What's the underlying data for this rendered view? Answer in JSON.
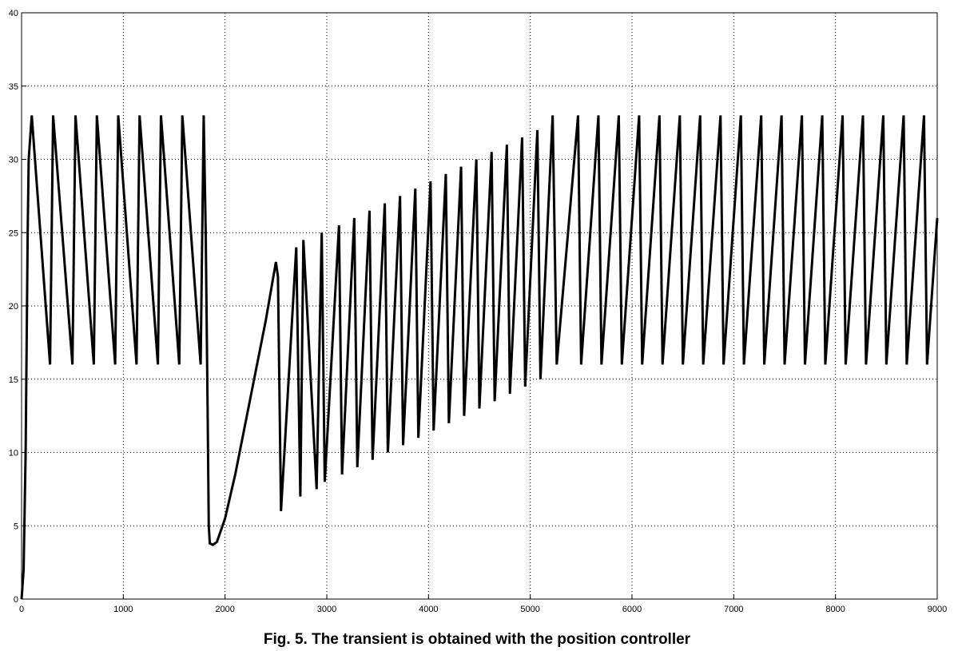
{
  "caption": "Fig. 5. The transient is obtained with the position controller",
  "chart_data": {
    "type": "line",
    "title": "",
    "xlabel": "",
    "ylabel": "",
    "xlim": [
      0,
      9000
    ],
    "ylim": [
      0,
      40
    ],
    "xticks": [
      0,
      1000,
      2000,
      3000,
      4000,
      5000,
      6000,
      7000,
      8000,
      9000
    ],
    "yticks": [
      0,
      5,
      10,
      15,
      20,
      25,
      30,
      35,
      40
    ],
    "grid": true,
    "legend": "none",
    "line_color": "#000000",
    "series": [
      {
        "x": [
          0,
          20,
          40,
          60,
          70,
          100,
          280,
          310,
          500,
          530,
          710,
          740,
          920,
          950,
          1130,
          1160,
          1340,
          1370,
          1550,
          1580,
          1760,
          1790,
          1810,
          1830,
          1840,
          1850,
          1880,
          1920,
          2000,
          2100,
          2200,
          2300,
          2400,
          2500,
          2520,
          2550,
          2700,
          2740,
          2770,
          2900,
          2950,
          2980,
          3120,
          3150,
          3270,
          3300,
          3420,
          3450,
          3570,
          3600,
          3720,
          3750,
          3870,
          3900,
          4020,
          4050,
          4170,
          4200,
          4320,
          4350,
          4470,
          4500,
          4620,
          4650,
          4770,
          4800,
          4920,
          4950,
          5070,
          5100,
          5220,
          5260,
          5470,
          5500,
          5670,
          5700,
          5870,
          5900,
          6070,
          6100,
          6270,
          6300,
          6470,
          6500,
          6670,
          6700,
          6870,
          6900,
          7070,
          7100,
          7270,
          7300,
          7470,
          7500,
          7670,
          7700,
          7870,
          7900,
          8070,
          8100,
          8270,
          8300,
          8470,
          8500,
          8670,
          8700,
          8870,
          8900,
          9000
        ],
        "y": [
          0,
          2,
          10,
          25,
          30,
          33,
          16,
          33,
          16,
          33,
          16,
          33,
          16,
          33,
          16,
          33,
          16,
          33,
          16,
          33,
          16,
          33,
          25,
          12,
          5,
          3.8,
          3.7,
          3.9,
          5.5,
          8.5,
          12,
          15.5,
          19,
          23,
          22,
          6,
          24,
          7,
          24.5,
          7.5,
          25,
          8,
          25.5,
          8.5,
          26,
          9,
          26.5,
          9.5,
          27,
          10,
          27.5,
          10.5,
          28,
          11,
          28.5,
          11.5,
          29,
          12,
          29.5,
          12.5,
          30,
          13,
          30.5,
          13.5,
          31,
          14,
          31.5,
          14.5,
          32,
          15,
          33,
          16,
          33,
          16,
          33,
          16,
          33,
          16,
          33,
          16,
          33,
          16,
          33,
          16,
          33,
          16,
          33,
          16,
          33,
          16,
          33,
          16,
          33,
          16,
          33,
          16,
          33,
          16,
          33,
          16,
          33,
          16,
          33,
          16,
          33,
          16,
          33,
          16,
          26
        ]
      }
    ]
  }
}
